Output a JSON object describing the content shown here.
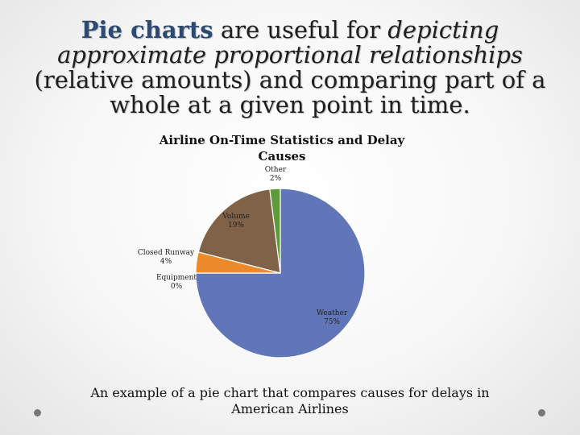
{
  "heading": {
    "part1": "Pie charts",
    "part2": " are useful for ",
    "part3": "depicting approximate proportional relationships",
    "part4": " (relative amounts) and comparing part of a whole at a given point in time."
  },
  "caption": "An example of a pie chart that compares causes for delays in American Airlines",
  "chart_data": {
    "type": "pie",
    "title": "Airline On-Time Statistics and Delay Causes",
    "slices": [
      {
        "label": "Weather",
        "value": 75,
        "pct_label": "75%",
        "color": "#6076b8"
      },
      {
        "label": "Equipment",
        "value": 0,
        "pct_label": "0%",
        "color": "#9aa9d6"
      },
      {
        "label": "Closed Runway",
        "value": 4,
        "pct_label": "4%",
        "color": "#ec8a2a"
      },
      {
        "label": "Volume",
        "value": 19,
        "pct_label": "19%",
        "color": "#7f6248"
      },
      {
        "label": "Other",
        "value": 2,
        "pct_label": "2%",
        "color": "#5f9a3a"
      }
    ],
    "legend": "none"
  }
}
